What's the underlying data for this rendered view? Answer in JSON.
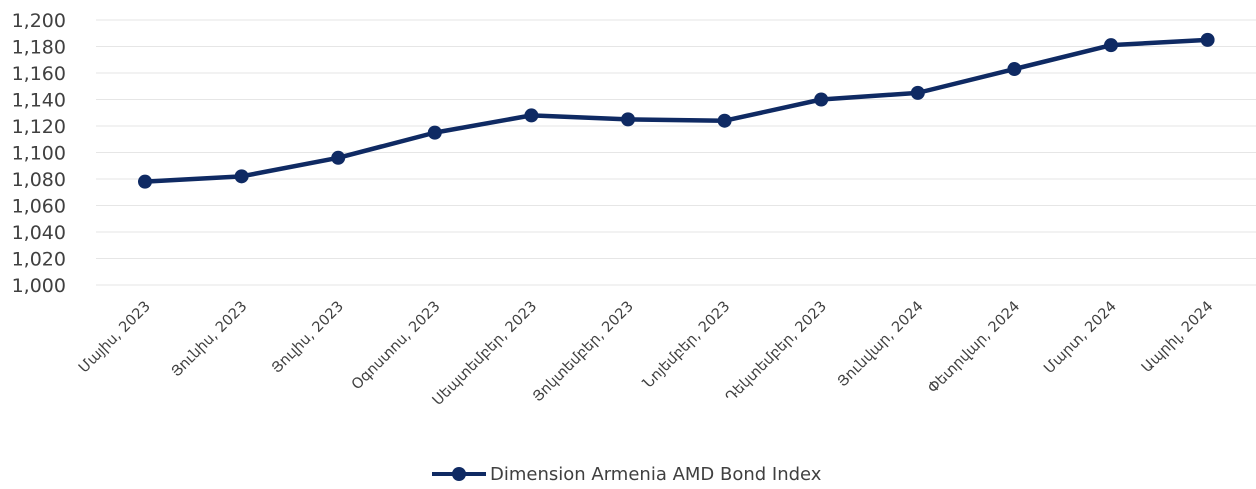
{
  "chart_data": {
    "type": "line",
    "categories": [
      "Մայիս, 2023",
      "Յունիս, 2023",
      "Յուլիս, 2023",
      "Օգոստոս, 2023",
      "Սեպտեմբեր, 2023",
      "Յոկտեմբեր, 2023",
      "Նոյեմբեր, 2023",
      "Դեկտեմբեր, 2023",
      "Յունվար, 2024",
      "Փետրվար, 2024",
      "Մարտ, 2024",
      "Ապրիլ, 2024"
    ],
    "series": [
      {
        "name": "Dimension Armenia AMD Bond Index",
        "color": "#0f2a63",
        "values": [
          1078,
          1082,
          1096,
          1115,
          1128,
          1125,
          1124,
          1140,
          1145,
          1163,
          1181,
          1185
        ]
      }
    ],
    "ylim": [
      1000,
      1200
    ],
    "yticks": [
      "1,000",
      "1,020",
      "1,040",
      "1,060",
      "1,080",
      "1,100",
      "1,120",
      "1,140",
      "1,160",
      "1,180",
      "1,200"
    ],
    "ytick_values": [
      1000,
      1020,
      1040,
      1060,
      1080,
      1100,
      1120,
      1140,
      1160,
      1180,
      1200
    ],
    "grid": true,
    "legend_position": "bottom-center"
  }
}
